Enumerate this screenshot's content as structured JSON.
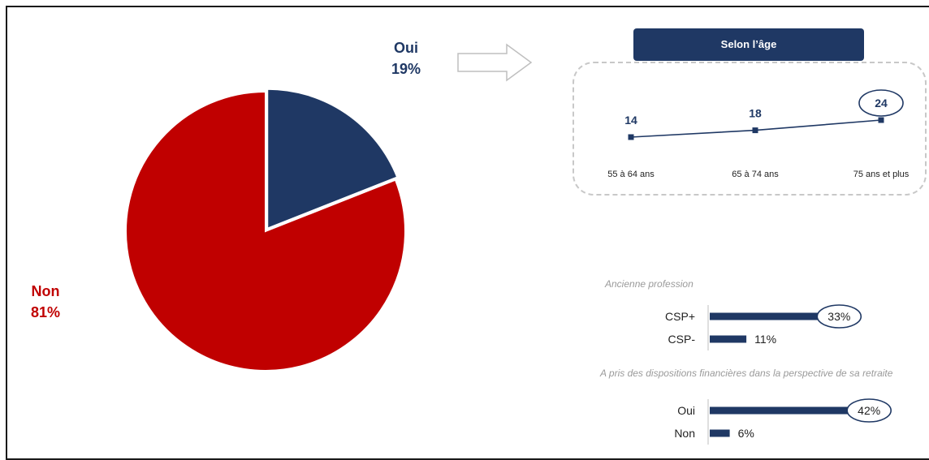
{
  "colors": {
    "navy": "#1f3864",
    "red": "#c00000"
  },
  "pie": {
    "slices": [
      {
        "label": "Oui",
        "value": 19,
        "display": "19%",
        "color": "#1f3864"
      },
      {
        "label": "Non",
        "value": 81,
        "display": "81%",
        "color": "#c00000"
      }
    ]
  },
  "age": {
    "header": "Selon l’âge"
  },
  "profession": {
    "title": "Ancienne profession"
  },
  "dispositions": {
    "title": "A pris des dispositions financières dans la perspective de sa retraite"
  },
  "chart_data": [
    {
      "type": "pie",
      "categories": [
        "Oui",
        "Non"
      ],
      "values": [
        19,
        81
      ],
      "labels": [
        "19%",
        "81%"
      ]
    },
    {
      "type": "line",
      "title": "Selon l’âge",
      "categories": [
        "55 à 64 ans",
        "65 à 74 ans",
        "75 ans et plus"
      ],
      "values": [
        14,
        18,
        24
      ],
      "highlight_index": 2,
      "grid": false
    },
    {
      "type": "bar",
      "orientation": "horizontal",
      "title": "Ancienne profession",
      "categories": [
        "CSP+",
        "CSP-"
      ],
      "values": [
        33,
        11
      ],
      "labels": [
        "33%",
        "11%"
      ],
      "highlight_index": 0,
      "xlim": [
        0,
        100
      ]
    },
    {
      "type": "bar",
      "orientation": "horizontal",
      "title": "A pris des dispositions financières dans la perspective de sa retraite",
      "categories": [
        "Oui",
        "Non"
      ],
      "values": [
        42,
        6
      ],
      "labels": [
        "42%",
        "6%"
      ],
      "highlight_index": 0,
      "xlim": [
        0,
        100
      ]
    }
  ]
}
